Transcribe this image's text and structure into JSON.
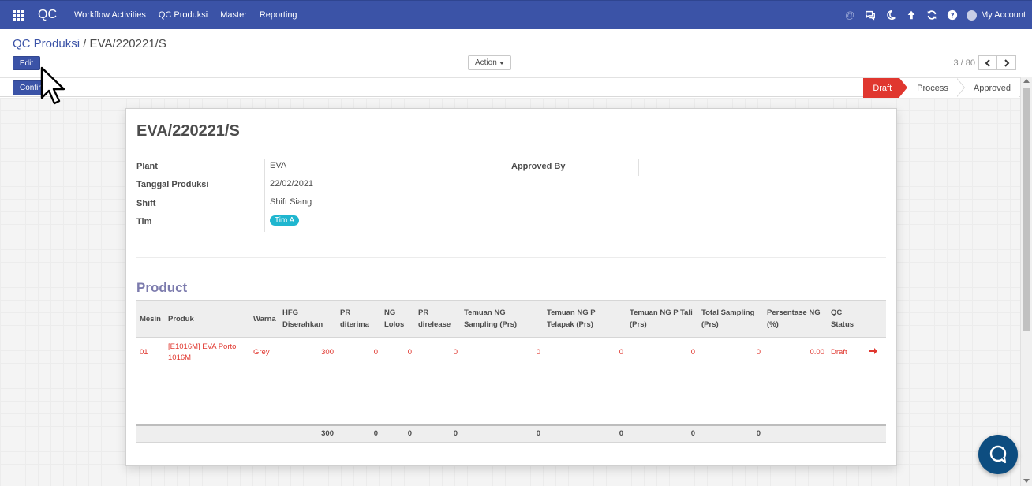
{
  "navbar": {
    "brand": "QC",
    "menu": [
      "Workflow Activities",
      "QC Produksi",
      "Master",
      "Reporting"
    ],
    "account_label": "My Account",
    "icons": [
      "at-icon",
      "chat-icon",
      "moon-icon",
      "arrow-up-icon",
      "refresh-icon",
      "help-icon"
    ]
  },
  "control_panel": {
    "breadcrumb_parent": "QC Produksi",
    "breadcrumb_separator": "/",
    "breadcrumb_current": "EVA/220221/S",
    "edit_label": "Edit",
    "action_label": "Action",
    "pager_value": "3 / 80",
    "confirm_label": "Confirm"
  },
  "statusbar": {
    "steps": [
      "Draft",
      "Process",
      "Approved"
    ],
    "active": "Draft"
  },
  "form": {
    "title": "EVA/220221/S",
    "fields": {
      "plant_label": "Plant",
      "plant_value": "EVA",
      "tanggal_label": "Tanggal Produksi",
      "tanggal_value": "22/02/2021",
      "shift_label": "Shift",
      "shift_value": "Shift Siang",
      "tim_label": "Tim",
      "tim_value": "Tim A",
      "approved_by_label": "Approved By",
      "approved_by_value": ""
    },
    "product_title": "Product",
    "table": {
      "headers": [
        "Mesin",
        "Produk",
        "Warna",
        "HFG Diserahkan",
        "PR diterima",
        "NG Lolos",
        "PR direlease",
        "Temuan NG Sampling (Prs)",
        "Temuan NG P Telapak (Prs)",
        "Temuan NG P Tali (Prs)",
        "Total Sampling (Prs)",
        "Persentase NG (%)",
        "QC Status"
      ],
      "row": {
        "mesin": "01",
        "produk": "[E1016M] EVA Porto 1016M",
        "warna": "Grey",
        "hfg": "300",
        "pr_diterima": "0",
        "ng_lolos": "0",
        "pr_direlease": "0",
        "ng_sampling": "0",
        "ng_telapak": "0",
        "ng_tali": "0",
        "total_sampling": "0",
        "persentase": "0.00",
        "status": "Draft"
      },
      "totals": {
        "hfg": "300",
        "pr_diterima": "0",
        "ng_lolos": "0",
        "pr_direlease": "0",
        "ng_sampling": "0",
        "ng_telapak": "0",
        "ng_tali": "0",
        "total_sampling": "0"
      }
    }
  },
  "colors": {
    "navbar": "#3b53a7",
    "accent_red": "#e0372f",
    "tag": "#1fb6cf",
    "section_title": "#7c7bad",
    "chat_bubble": "#0d4d80"
  }
}
